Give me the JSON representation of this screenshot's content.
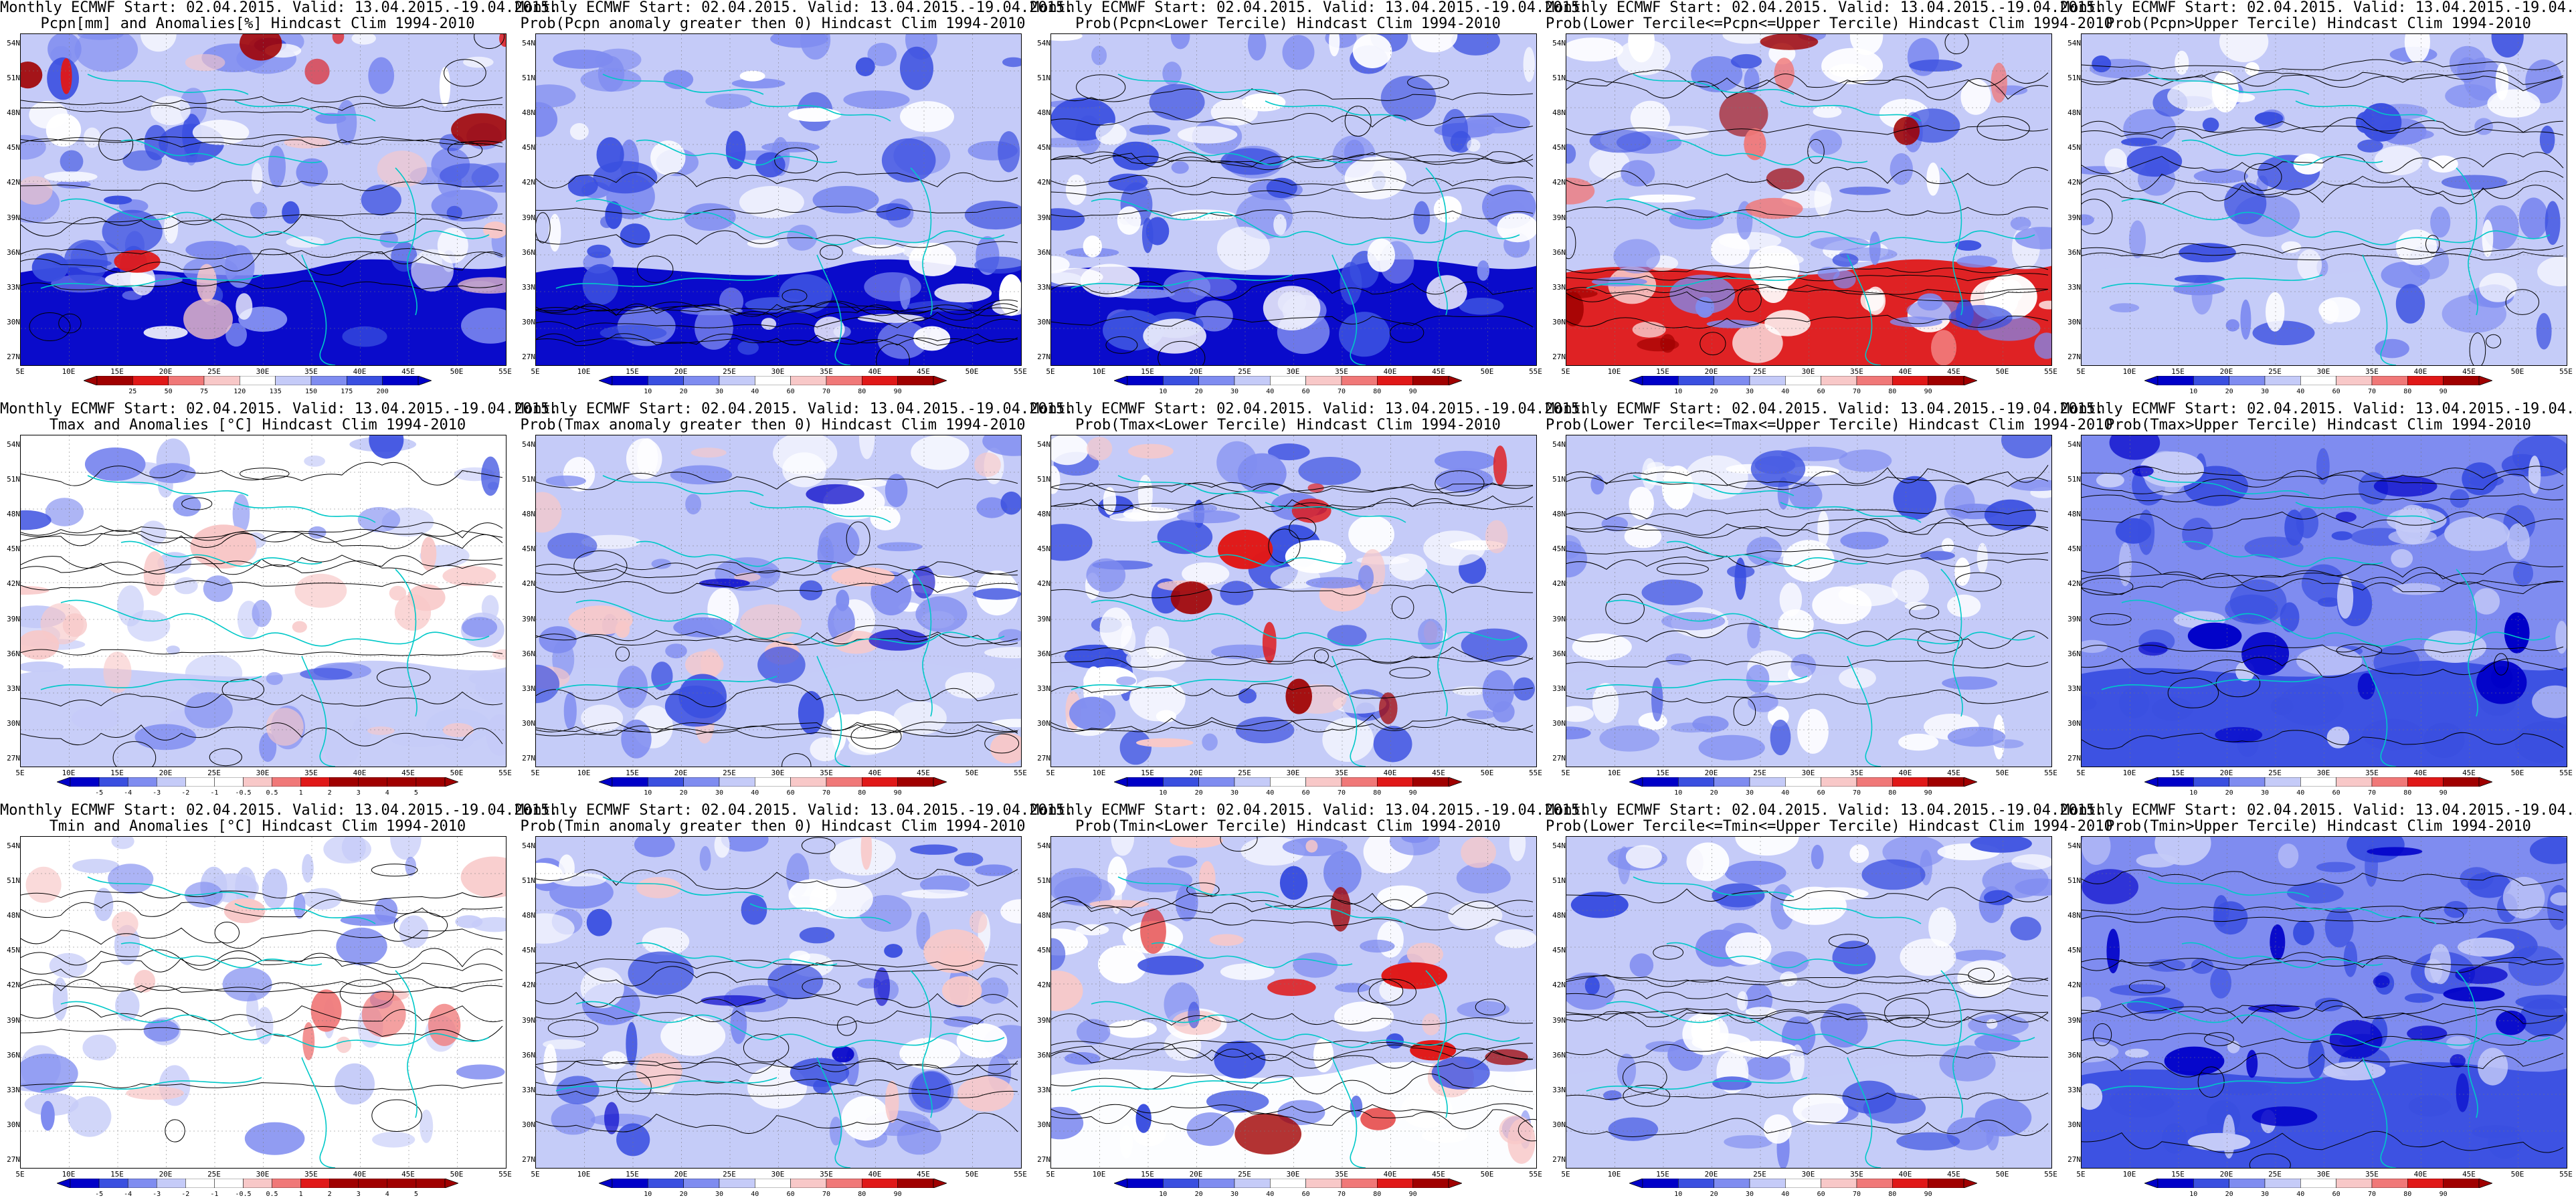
{
  "common": {
    "line1": "Monthly ECMWF Start: 02.04.2015. Valid: 13.04.2015.-19.04.2015.",
    "lat_labels": [
      "54N",
      "51N",
      "48N",
      "45N",
      "42N",
      "39N",
      "36N",
      "33N",
      "30N",
      "27N"
    ],
    "lon_labels": [
      "5E",
      "10E",
      "15E",
      "20E",
      "25E",
      "30E",
      "35E",
      "40E",
      "45E",
      "50E",
      "55E"
    ]
  },
  "scales": {
    "pcpn": [
      "25",
      "50",
      "75",
      "120",
      "135",
      "150",
      "175",
      "200"
    ],
    "prob": [
      "10",
      "20",
      "30",
      "40",
      "60",
      "70",
      "80",
      "90"
    ],
    "temp": [
      "-5",
      "-4",
      "-3",
      "-2",
      "-1",
      "-0.5",
      "0.5",
      "1",
      "2",
      "3",
      "4",
      "5"
    ]
  },
  "colors": {
    "deep_blue": "#0000c8",
    "blue": "#3a4fe0",
    "mid_blue": "#7f8cf0",
    "light_blue": "#c5cbf8",
    "white": "#ffffff",
    "light_red": "#f8c8c8",
    "mid_red": "#f07878",
    "red": "#e01818",
    "dark_red": "#a00000",
    "coast": "#00c8c8",
    "contour": "#000000"
  },
  "panels": [
    {
      "id": "pcpn-anom",
      "title": "Pcpn[mm] and Anomalies[%] Hindcast Clim 1994-2010",
      "scale": "pcpn",
      "palette": "anom"
    },
    {
      "id": "pcpn-prob-pos",
      "title": "Prob(Pcpn anomaly greater then 0) Hindcast Clim 1994-2010",
      "scale": "prob",
      "palette": "prob"
    },
    {
      "id": "pcpn-prob-lower",
      "title": "Prob(Pcpn<Lower Tercile) Hindcast Clim 1994-2010",
      "scale": "prob",
      "palette": "prob"
    },
    {
      "id": "pcpn-prob-middle",
      "title": "Prob(Lower Tercile<=Pcpn<=Upper Tercile) Hindcast Clim 1994-2010",
      "scale": "prob",
      "palette": "prob"
    },
    {
      "id": "pcpn-prob-upper",
      "title": "Prob(Pcpn>Upper Tercile) Hindcast Clim 1994-2010",
      "scale": "prob",
      "palette": "prob"
    },
    {
      "id": "tmax-anom",
      "title": "Tmax and Anomalies [°C] Hindcast Clim 1994-2010",
      "scale": "temp",
      "palette": "anom"
    },
    {
      "id": "tmax-prob-pos",
      "title": "Prob(Tmax anomaly greater then 0) Hindcast Clim 1994-2010",
      "scale": "prob",
      "palette": "prob"
    },
    {
      "id": "tmax-prob-lower",
      "title": "Prob(Tmax<Lower Tercile) Hindcast Clim 1994-2010",
      "scale": "prob",
      "palette": "prob"
    },
    {
      "id": "tmax-prob-middle",
      "title": "Prob(Lower Tercile<=Tmax<=Upper Tercile) Hindcast Clim 1994-2010",
      "scale": "prob",
      "palette": "prob"
    },
    {
      "id": "tmax-prob-upper",
      "title": "Prob(Tmax>Upper Tercile) Hindcast Clim 1994-2010",
      "scale": "prob",
      "palette": "prob"
    },
    {
      "id": "tmin-anom",
      "title": "Tmin and Anomalies [°C] Hindcast Clim 1994-2010",
      "scale": "temp",
      "palette": "anom"
    },
    {
      "id": "tmin-prob-pos",
      "title": "Prob(Tmin anomaly greater then 0) Hindcast Clim 1994-2010",
      "scale": "prob",
      "palette": "prob"
    },
    {
      "id": "tmin-prob-lower",
      "title": "Prob(Tmin<Lower Tercile) Hindcast Clim 1994-2010",
      "scale": "prob",
      "palette": "prob"
    },
    {
      "id": "tmin-prob-middle",
      "title": "Prob(Lower Tercile<=Tmin<=Upper Tercile) Hindcast Clim 1994-2010",
      "scale": "prob",
      "palette": "prob"
    },
    {
      "id": "tmin-prob-upper",
      "title": "Prob(Tmin>Upper Tercile) Hindcast Clim 1994-2010",
      "scale": "prob",
      "palette": "prob"
    }
  ]
}
